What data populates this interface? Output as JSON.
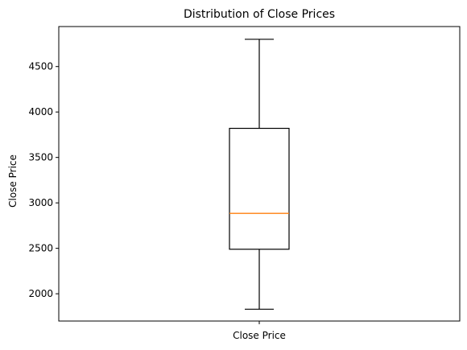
{
  "chart_data": {
    "type": "box",
    "title": "Distribution of Close Prices",
    "xlabel": "",
    "ylabel": "Close Price",
    "categories": [
      "Close Price"
    ],
    "boxes": [
      {
        "category": "Close Price",
        "whisker_low": 1830,
        "q1": 2490,
        "median": 2885,
        "q3": 3820,
        "whisker_high": 4800
      }
    ],
    "yticks": [
      2000,
      2500,
      3000,
      3500,
      4000,
      4500
    ],
    "ylim": [
      1700,
      4940
    ],
    "grid": false,
    "colors": {
      "box": "#000000",
      "median": "#ff7f0e",
      "axis": "#000000"
    }
  }
}
